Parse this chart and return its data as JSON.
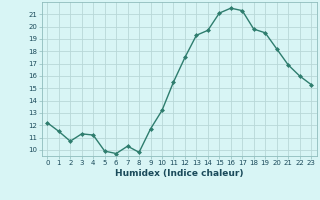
{
  "x": [
    0,
    1,
    2,
    3,
    4,
    5,
    6,
    7,
    8,
    9,
    10,
    11,
    12,
    13,
    14,
    15,
    16,
    17,
    18,
    19,
    20,
    21,
    22,
    23
  ],
  "y": [
    12.2,
    11.5,
    10.7,
    11.3,
    11.2,
    9.9,
    9.7,
    10.3,
    9.8,
    11.7,
    13.2,
    15.5,
    17.5,
    19.3,
    19.7,
    21.1,
    21.5,
    21.3,
    19.8,
    19.5,
    18.2,
    16.9,
    16.0,
    15.3
  ],
  "line_color": "#2e7d6e",
  "marker": "D",
  "markersize": 2.0,
  "linewidth": 1.0,
  "bg_color": "#d8f5f5",
  "grid_color": "#b8d8d8",
  "xlabel": "Humidex (Indice chaleur)",
  "ylim": [
    9.5,
    22.0
  ],
  "yticks": [
    10,
    11,
    12,
    13,
    14,
    15,
    16,
    17,
    18,
    19,
    20,
    21
  ],
  "xticks": [
    0,
    1,
    2,
    3,
    4,
    5,
    6,
    7,
    8,
    9,
    10,
    11,
    12,
    13,
    14,
    15,
    16,
    17,
    18,
    19,
    20,
    21,
    22,
    23
  ],
  "tick_fontsize": 5.0,
  "xlabel_fontsize": 6.5,
  "spine_color": "#8fbcbc"
}
